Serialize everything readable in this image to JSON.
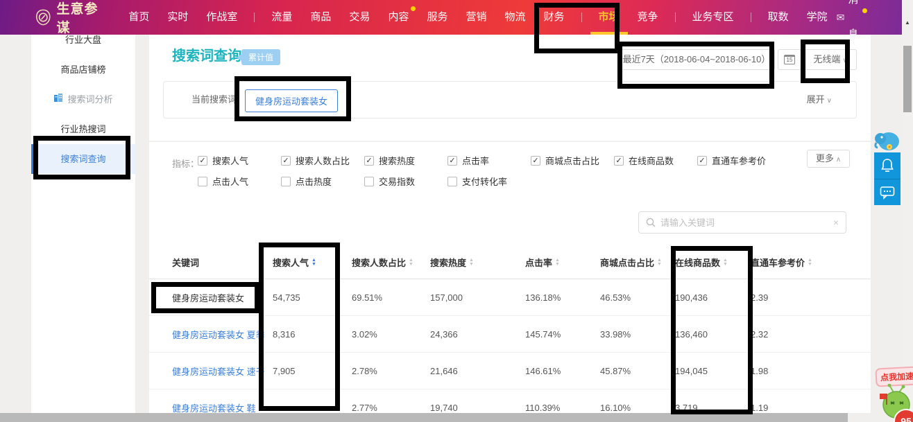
{
  "icons": {
    "check": "✓",
    "chevron_down": "∨",
    "chevron_up": "∧",
    "sort_up": "▲",
    "sort_down": "▼",
    "clear": "×",
    "envelope": "✉",
    "scroll_up": "▲"
  },
  "colors": {
    "accent_blue": "#3d7fd9",
    "title_teal": "#1cb5bf",
    "nav_active_yellow": "#ffc72c",
    "nav_gradient_red": "#e6333f",
    "widget_blue": "#1296db"
  },
  "nav": {
    "logo": "生意参谋",
    "items": [
      {
        "key": "home",
        "label": "首页"
      },
      {
        "key": "realtime",
        "label": "实时"
      },
      {
        "key": "war-room",
        "label": "作战室"
      },
      {
        "divider": true
      },
      {
        "key": "traffic",
        "label": "流量"
      },
      {
        "key": "product",
        "label": "商品"
      },
      {
        "key": "trade",
        "label": "交易"
      },
      {
        "key": "content",
        "label": "内容",
        "dot": true
      },
      {
        "key": "service",
        "label": "服务"
      },
      {
        "key": "marketing",
        "label": "营销"
      },
      {
        "key": "logistics",
        "label": "物流"
      },
      {
        "key": "finance",
        "label": "财务"
      },
      {
        "divider": true
      },
      {
        "key": "market",
        "label": "市场",
        "active": true
      },
      {
        "key": "competition",
        "label": "竞争"
      },
      {
        "divider": true
      },
      {
        "key": "business-zone",
        "label": "业务专区"
      },
      {
        "divider": true
      },
      {
        "key": "data-extract",
        "label": "取数"
      },
      {
        "key": "academy",
        "label": "学院"
      }
    ],
    "messages": {
      "label": "消息",
      "dot": true
    }
  },
  "sidebar": {
    "items": [
      {
        "key": "industry-overview",
        "label": "行业大盘"
      },
      {
        "key": "product-shop-rank",
        "label": "商品店铺榜"
      },
      {
        "key": "search-term-analysis",
        "label": "搜索词分析",
        "section": true
      },
      {
        "key": "industry-hot-search",
        "label": "行业热搜词"
      },
      {
        "key": "search-term-query",
        "label": "搜索词查询",
        "active": true
      }
    ]
  },
  "header": {
    "title": "搜索词查询",
    "badge": "累计值"
  },
  "filters": {
    "date_label": "最近7天（2018-06-04~2018-06-10）",
    "calendar_day": "15",
    "terminal": "无线端",
    "current_term_label": "当前搜索词",
    "current_term": "健身房运动套装女",
    "expand_label": "展开"
  },
  "metrics": {
    "label": "指标：",
    "more_label": "更多",
    "row1": [
      {
        "key": "search-popularity",
        "label": "搜索人气",
        "checked": true
      },
      {
        "key": "search-user-ratio",
        "label": "搜索人数占比",
        "checked": true
      },
      {
        "key": "search-heat",
        "label": "搜索热度",
        "checked": true
      },
      {
        "key": "click-rate",
        "label": "点击率",
        "checked": true
      },
      {
        "key": "mall-click-ratio",
        "label": "商城点击占比",
        "checked": true
      },
      {
        "key": "online-products",
        "label": "在线商品数",
        "checked": true
      },
      {
        "key": "ppc-reference-price",
        "label": "直通车参考价",
        "checked": true
      }
    ],
    "row2": [
      {
        "key": "click-popularity",
        "label": "点击人气",
        "checked": false
      },
      {
        "key": "click-heat",
        "label": "点击热度",
        "checked": false
      },
      {
        "key": "trade-index",
        "label": "交易指数",
        "checked": false
      },
      {
        "key": "payment-conversion",
        "label": "支付转化率",
        "checked": false
      }
    ]
  },
  "search": {
    "placeholder": "请输入关键词"
  },
  "table": {
    "columns": [
      {
        "key": "keyword",
        "label": "关键词",
        "sortable": false
      },
      {
        "key": "search-popularity",
        "label": "搜索人气",
        "sortable": true,
        "active": true
      },
      {
        "key": "search-user-ratio",
        "label": "搜索人数占比",
        "sortable": true
      },
      {
        "key": "search-heat",
        "label": "搜索热度",
        "sortable": true
      },
      {
        "key": "click-rate",
        "label": "点击率",
        "sortable": true
      },
      {
        "key": "mall-click-ratio",
        "label": "商城点击占比",
        "sortable": true
      },
      {
        "key": "online-products",
        "label": "在线商品数",
        "sortable": true
      },
      {
        "key": "ppc-reference-price",
        "label": "直通车参考价",
        "sortable": true
      }
    ],
    "rows": [
      {
        "keyword": "健身房运动套装女",
        "link": false,
        "values": [
          "54,735",
          "69.51%",
          "157,000",
          "136.18%",
          "46.53%",
          "190,436",
          "2.39"
        ]
      },
      {
        "keyword": "健身房运动套装女 夏季",
        "link": true,
        "values": [
          "8,316",
          "3.02%",
          "24,366",
          "145.74%",
          "33.98%",
          "136,460",
          "2.32"
        ]
      },
      {
        "keyword": "健身房运动套装女 速干",
        "link": true,
        "values": [
          "7,905",
          "2.78%",
          "21,646",
          "146.61%",
          "45.87%",
          "194,045",
          "1.98"
        ]
      },
      {
        "keyword": "健身房运动套装女 鞋",
        "link": true,
        "values": [
          "",
          "2.77%",
          "19,740",
          "110.39%",
          "16.10%",
          "3,719",
          "1.19"
        ]
      }
    ]
  },
  "widgets": {
    "accelerator_label": "点我加速",
    "badge_count": "95"
  }
}
